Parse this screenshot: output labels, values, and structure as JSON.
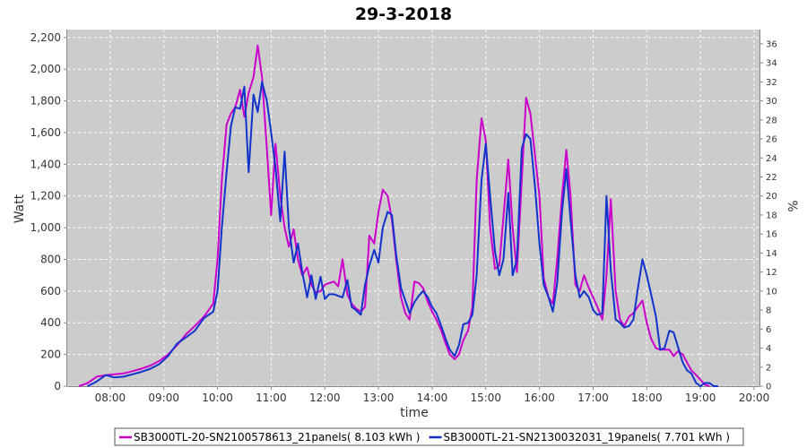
{
  "chart_data": {
    "type": "line",
    "title": "29-3-2018",
    "xlabel": "time",
    "ylabel": "Watt",
    "y2label": "%",
    "xlim": [
      7.2,
      20.1
    ],
    "ylim": [
      0,
      2250
    ],
    "y2lim": [
      0,
      37.5
    ],
    "grid": true,
    "legend_position": "bottom",
    "x_ticks": [
      {
        "v": 8,
        "label": "08:00"
      },
      {
        "v": 9,
        "label": "09:00"
      },
      {
        "v": 10,
        "label": "10:00"
      },
      {
        "v": 11,
        "label": "11:00"
      },
      {
        "v": 12,
        "label": "12:00"
      },
      {
        "v": 13,
        "label": "13:00"
      },
      {
        "v": 14,
        "label": "14:00"
      },
      {
        "v": 15,
        "label": "15:00"
      },
      {
        "v": 16,
        "label": "16:00"
      },
      {
        "v": 17,
        "label": "17:00"
      },
      {
        "v": 18,
        "label": "18:00"
      },
      {
        "v": 19,
        "label": "19:00"
      },
      {
        "v": 20,
        "label": "20:00"
      }
    ],
    "y_ticks": [
      {
        "v": 0,
        "label": "0"
      },
      {
        "v": 200,
        "label": "200"
      },
      {
        "v": 400,
        "label": "400"
      },
      {
        "v": 600,
        "label": "600"
      },
      {
        "v": 800,
        "label": "800"
      },
      {
        "v": 1000,
        "label": "1,000"
      },
      {
        "v": 1200,
        "label": "1,200"
      },
      {
        "v": 1400,
        "label": "1,400"
      },
      {
        "v": 1600,
        "label": "1,600"
      },
      {
        "v": 1800,
        "label": "1,800"
      },
      {
        "v": 2000,
        "label": "2,000"
      },
      {
        "v": 2200,
        "label": "2,200"
      }
    ],
    "y2_ticks": [
      {
        "v": 0,
        "label": "0"
      },
      {
        "v": 2,
        "label": "2"
      },
      {
        "v": 4,
        "label": "4"
      },
      {
        "v": 6,
        "label": "6"
      },
      {
        "v": 8,
        "label": "8"
      },
      {
        "v": 10,
        "label": "10"
      },
      {
        "v": 12,
        "label": "12"
      },
      {
        "v": 14,
        "label": "14"
      },
      {
        "v": 16,
        "label": "16"
      },
      {
        "v": 18,
        "label": "18"
      },
      {
        "v": 20,
        "label": "20"
      },
      {
        "v": 22,
        "label": "22"
      },
      {
        "v": 24,
        "label": "24"
      },
      {
        "v": 26,
        "label": "26"
      },
      {
        "v": 28,
        "label": "28"
      },
      {
        "v": 30,
        "label": "30"
      },
      {
        "v": 32,
        "label": "32"
      },
      {
        "v": 34,
        "label": "34"
      },
      {
        "v": 36,
        "label": "36"
      }
    ],
    "series": [
      {
        "name": "SB3000TL-20-SN2100578613_21panels( 8.103 kWh )",
        "color": "#cc00cc",
        "points": [
          [
            7.42,
            0
          ],
          [
            7.58,
            20
          ],
          [
            7.75,
            60
          ],
          [
            7.92,
            70
          ],
          [
            8.08,
            75
          ],
          [
            8.25,
            80
          ],
          [
            8.42,
            95
          ],
          [
            8.58,
            110
          ],
          [
            8.75,
            130
          ],
          [
            8.92,
            160
          ],
          [
            9.08,
            200
          ],
          [
            9.25,
            260
          ],
          [
            9.42,
            330
          ],
          [
            9.58,
            380
          ],
          [
            9.75,
            440
          ],
          [
            9.92,
            520
          ],
          [
            10.0,
            800
          ],
          [
            10.08,
            1300
          ],
          [
            10.17,
            1650
          ],
          [
            10.25,
            1720
          ],
          [
            10.33,
            1760
          ],
          [
            10.42,
            1870
          ],
          [
            10.5,
            1700
          ],
          [
            10.58,
            1850
          ],
          [
            10.67,
            1950
          ],
          [
            10.75,
            2150
          ],
          [
            10.83,
            1950
          ],
          [
            10.92,
            1500
          ],
          [
            11.0,
            1080
          ],
          [
            11.08,
            1530
          ],
          [
            11.17,
            1200
          ],
          [
            11.25,
            1000
          ],
          [
            11.33,
            880
          ],
          [
            11.42,
            990
          ],
          [
            11.5,
            800
          ],
          [
            11.58,
            700
          ],
          [
            11.67,
            750
          ],
          [
            11.75,
            640
          ],
          [
            11.83,
            590
          ],
          [
            11.92,
            600
          ],
          [
            12.0,
            640
          ],
          [
            12.08,
            650
          ],
          [
            12.17,
            660
          ],
          [
            12.25,
            630
          ],
          [
            12.33,
            800
          ],
          [
            12.42,
            580
          ],
          [
            12.5,
            520
          ],
          [
            12.58,
            490
          ],
          [
            12.67,
            470
          ],
          [
            12.75,
            500
          ],
          [
            12.83,
            950
          ],
          [
            12.92,
            900
          ],
          [
            13.0,
            1100
          ],
          [
            13.08,
            1240
          ],
          [
            13.17,
            1200
          ],
          [
            13.25,
            1050
          ],
          [
            13.33,
            800
          ],
          [
            13.42,
            560
          ],
          [
            13.5,
            460
          ],
          [
            13.58,
            420
          ],
          [
            13.67,
            660
          ],
          [
            13.75,
            650
          ],
          [
            13.83,
            620
          ],
          [
            13.92,
            530
          ],
          [
            14.0,
            470
          ],
          [
            14.08,
            420
          ],
          [
            14.17,
            350
          ],
          [
            14.25,
            270
          ],
          [
            14.33,
            200
          ],
          [
            14.42,
            170
          ],
          [
            14.5,
            200
          ],
          [
            14.58,
            290
          ],
          [
            14.67,
            350
          ],
          [
            14.75,
            500
          ],
          [
            14.83,
            1300
          ],
          [
            14.92,
            1690
          ],
          [
            15.0,
            1550
          ],
          [
            15.08,
            1000
          ],
          [
            15.17,
            740
          ],
          [
            15.25,
            760
          ],
          [
            15.33,
            1070
          ],
          [
            15.42,
            1430
          ],
          [
            15.5,
            1000
          ],
          [
            15.58,
            720
          ],
          [
            15.67,
            1300
          ],
          [
            15.75,
            1820
          ],
          [
            15.83,
            1720
          ],
          [
            15.92,
            1450
          ],
          [
            16.0,
            1200
          ],
          [
            16.08,
            680
          ],
          [
            16.17,
            560
          ],
          [
            16.25,
            520
          ],
          [
            16.33,
            800
          ],
          [
            16.42,
            1200
          ],
          [
            16.5,
            1490
          ],
          [
            16.58,
            1200
          ],
          [
            16.67,
            640
          ],
          [
            16.75,
            600
          ],
          [
            16.83,
            700
          ],
          [
            16.92,
            620
          ],
          [
            17.0,
            560
          ],
          [
            17.08,
            500
          ],
          [
            17.17,
            420
          ],
          [
            17.25,
            700
          ],
          [
            17.33,
            1180
          ],
          [
            17.42,
            600
          ],
          [
            17.5,
            420
          ],
          [
            17.58,
            380
          ],
          [
            17.67,
            440
          ],
          [
            17.75,
            460
          ],
          [
            17.83,
            500
          ],
          [
            17.92,
            540
          ],
          [
            18.0,
            400
          ],
          [
            18.08,
            300
          ],
          [
            18.17,
            240
          ],
          [
            18.25,
            230
          ],
          [
            18.33,
            230
          ],
          [
            18.42,
            230
          ],
          [
            18.5,
            190
          ],
          [
            18.58,
            220
          ],
          [
            18.67,
            200
          ],
          [
            18.75,
            150
          ],
          [
            18.83,
            100
          ],
          [
            18.92,
            70
          ],
          [
            19.0,
            40
          ],
          [
            19.08,
            10
          ],
          [
            19.17,
            0
          ]
        ]
      },
      {
        "name": "SB3000TL-21-SN2130032031_19panels( 7.701 kWh )",
        "color": "#1133cc",
        "points": [
          [
            7.58,
            0
          ],
          [
            7.75,
            30
          ],
          [
            7.92,
            70
          ],
          [
            8.08,
            55
          ],
          [
            8.25,
            60
          ],
          [
            8.42,
            75
          ],
          [
            8.58,
            90
          ],
          [
            8.75,
            110
          ],
          [
            8.92,
            140
          ],
          [
            9.08,
            190
          ],
          [
            9.25,
            270
          ],
          [
            9.42,
            310
          ],
          [
            9.58,
            350
          ],
          [
            9.75,
            430
          ],
          [
            9.92,
            470
          ],
          [
            10.0,
            600
          ],
          [
            10.08,
            1000
          ],
          [
            10.17,
            1350
          ],
          [
            10.25,
            1640
          ],
          [
            10.33,
            1760
          ],
          [
            10.42,
            1750
          ],
          [
            10.5,
            1890
          ],
          [
            10.58,
            1350
          ],
          [
            10.67,
            1840
          ],
          [
            10.75,
            1730
          ],
          [
            10.83,
            1920
          ],
          [
            10.92,
            1800
          ],
          [
            11.0,
            1600
          ],
          [
            11.08,
            1380
          ],
          [
            11.17,
            1040
          ],
          [
            11.25,
            1480
          ],
          [
            11.33,
            1000
          ],
          [
            11.42,
            780
          ],
          [
            11.5,
            900
          ],
          [
            11.58,
            720
          ],
          [
            11.67,
            560
          ],
          [
            11.75,
            700
          ],
          [
            11.83,
            550
          ],
          [
            11.92,
            690
          ],
          [
            12.0,
            550
          ],
          [
            12.08,
            580
          ],
          [
            12.17,
            580
          ],
          [
            12.25,
            570
          ],
          [
            12.33,
            560
          ],
          [
            12.42,
            670
          ],
          [
            12.5,
            500
          ],
          [
            12.58,
            480
          ],
          [
            12.67,
            450
          ],
          [
            12.75,
            640
          ],
          [
            12.83,
            760
          ],
          [
            12.92,
            860
          ],
          [
            13.0,
            780
          ],
          [
            13.08,
            1000
          ],
          [
            13.17,
            1100
          ],
          [
            13.25,
            1080
          ],
          [
            13.33,
            830
          ],
          [
            13.42,
            620
          ],
          [
            13.5,
            540
          ],
          [
            13.58,
            460
          ],
          [
            13.67,
            530
          ],
          [
            13.75,
            570
          ],
          [
            13.83,
            600
          ],
          [
            13.92,
            560
          ],
          [
            14.0,
            500
          ],
          [
            14.08,
            460
          ],
          [
            14.17,
            380
          ],
          [
            14.25,
            300
          ],
          [
            14.33,
            230
          ],
          [
            14.42,
            190
          ],
          [
            14.5,
            260
          ],
          [
            14.58,
            390
          ],
          [
            14.67,
            400
          ],
          [
            14.75,
            450
          ],
          [
            14.83,
            700
          ],
          [
            14.92,
            1300
          ],
          [
            15.0,
            1530
          ],
          [
            15.08,
            1200
          ],
          [
            15.17,
            850
          ],
          [
            15.25,
            700
          ],
          [
            15.33,
            800
          ],
          [
            15.42,
            1220
          ],
          [
            15.5,
            700
          ],
          [
            15.58,
            800
          ],
          [
            15.67,
            1500
          ],
          [
            15.75,
            1590
          ],
          [
            15.83,
            1560
          ],
          [
            15.92,
            1250
          ],
          [
            16.0,
            900
          ],
          [
            16.08,
            640
          ],
          [
            16.17,
            560
          ],
          [
            16.25,
            470
          ],
          [
            16.33,
            650
          ],
          [
            16.42,
            1100
          ],
          [
            16.5,
            1370
          ],
          [
            16.58,
            1050
          ],
          [
            16.67,
            700
          ],
          [
            16.75,
            560
          ],
          [
            16.83,
            600
          ],
          [
            16.92,
            560
          ],
          [
            17.0,
            480
          ],
          [
            17.08,
            450
          ],
          [
            17.17,
            460
          ],
          [
            17.25,
            1200
          ],
          [
            17.33,
            730
          ],
          [
            17.42,
            420
          ],
          [
            17.5,
            400
          ],
          [
            17.58,
            370
          ],
          [
            17.67,
            380
          ],
          [
            17.75,
            420
          ],
          [
            17.83,
            610
          ],
          [
            17.92,
            800
          ],
          [
            18.0,
            700
          ],
          [
            18.08,
            580
          ],
          [
            18.17,
            440
          ],
          [
            18.25,
            230
          ],
          [
            18.33,
            240
          ],
          [
            18.42,
            350
          ],
          [
            18.5,
            340
          ],
          [
            18.58,
            250
          ],
          [
            18.67,
            150
          ],
          [
            18.75,
            100
          ],
          [
            18.83,
            80
          ],
          [
            18.92,
            20
          ],
          [
            19.0,
            0
          ],
          [
            19.08,
            20
          ],
          [
            19.17,
            20
          ],
          [
            19.25,
            0
          ],
          [
            19.33,
            0
          ]
        ]
      }
    ]
  }
}
